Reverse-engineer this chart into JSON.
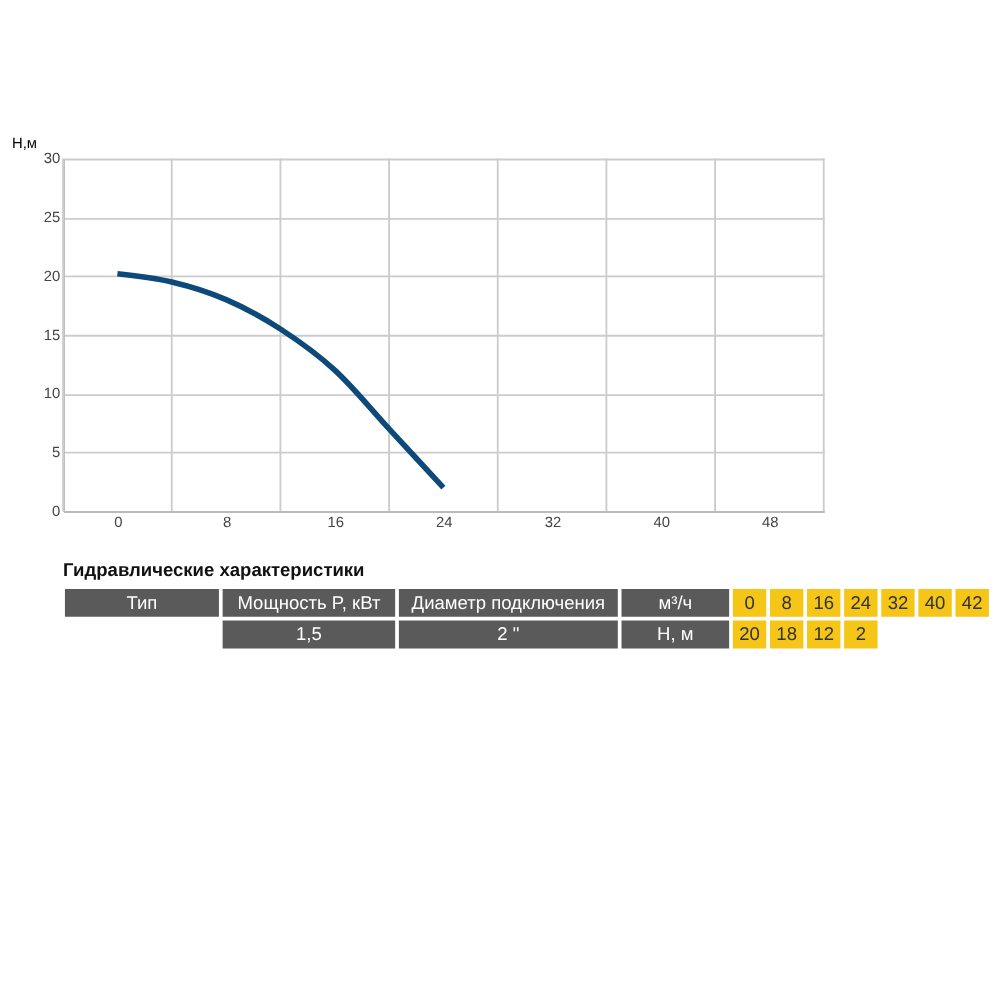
{
  "chart_data": {
    "type": "line",
    "ylabel": "H,м",
    "x": [
      0,
      4,
      8,
      12,
      16,
      20,
      24
    ],
    "series": [
      {
        "color": "#0d4a7a",
        "values": [
          20.2,
          19.5,
          18,
          15.5,
          12,
          7,
          2
        ]
      }
    ],
    "xlim": [
      -4,
      52
    ],
    "xticks": [
      {
        "value": -4,
        "label": null
      },
      0,
      {
        "value": 4,
        "label": null
      },
      8,
      {
        "value": 12,
        "label": null
      },
      16,
      {
        "value": 20,
        "label": null
      },
      24,
      {
        "value": 28,
        "label": null
      },
      32,
      {
        "value": 36,
        "label": null
      },
      40,
      {
        "value": 44,
        "label": null
      },
      48,
      {
        "value": 52,
        "label": null
      }
    ],
    "ylim": [
      0,
      30
    ],
    "yticks": [
      0,
      5,
      10,
      15,
      20,
      25,
      30
    ],
    "grid": true,
    "annotations": [
      "Гидравлические характеристики",
      "Тип",
      "Мощность P, кВт",
      "Диаметр подключения",
      "м³/ч",
      "0",
      "8",
      "16",
      "24",
      "32",
      "40",
      "42",
      "1,5",
      "2 \"",
      "Н, м",
      "20",
      "18",
      "12",
      "2"
    ]
  }
}
